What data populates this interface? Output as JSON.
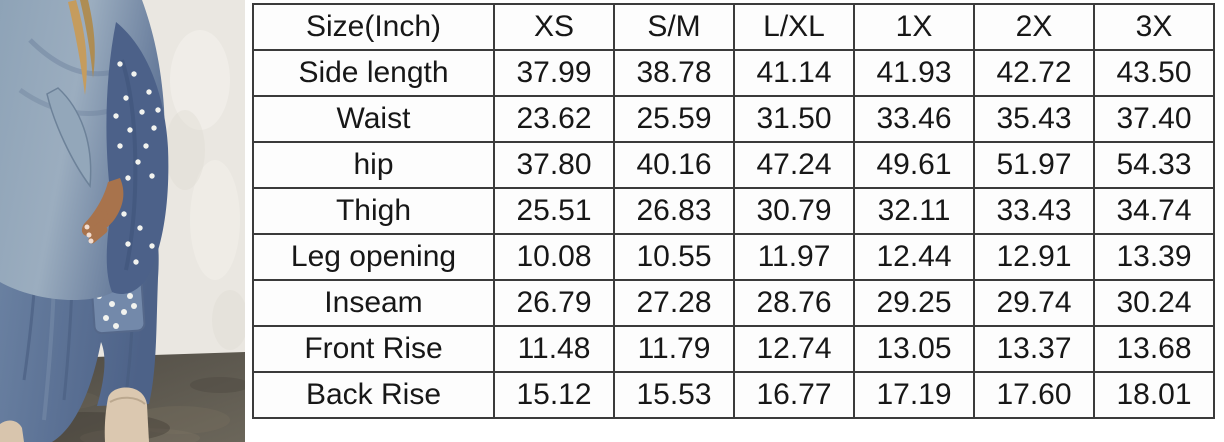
{
  "photo": {
    "colors": {
      "wall": "#eae7e1",
      "floor": "#57524a",
      "denim_light": "#93a7ba",
      "denim_dark": "#4c6189",
      "pants_denim": "#5d7494",
      "waistband": "#26395a",
      "pearl": "#f2f3ef",
      "skin": "#a8734c",
      "boot": "#dbc8b0",
      "hair": "#c59c5e"
    }
  },
  "table": {
    "header": [
      "Size(Inch)",
      "XS",
      "S/M",
      "L/XL",
      "1X",
      "2X",
      "3X"
    ],
    "rows": [
      {
        "label": "Side length",
        "values": [
          "37.99",
          "38.78",
          "41.14",
          "41.93",
          "42.72",
          "43.50"
        ]
      },
      {
        "label": "Waist",
        "values": [
          "23.62",
          "25.59",
          "31.50",
          "33.46",
          "35.43",
          "37.40"
        ]
      },
      {
        "label": "hip",
        "values": [
          "37.80",
          "40.16",
          "47.24",
          "49.61",
          "51.97",
          "54.33"
        ]
      },
      {
        "label": "Thigh",
        "values": [
          "25.51",
          "26.83",
          "30.79",
          "32.11",
          "33.43",
          "34.74"
        ]
      },
      {
        "label": "Leg opening",
        "values": [
          "10.08",
          "10.55",
          "11.97",
          "12.44",
          "12.91",
          "13.39"
        ]
      },
      {
        "label": "Inseam",
        "values": [
          "26.79",
          "27.28",
          "28.76",
          "29.25",
          "29.74",
          "30.24"
        ]
      },
      {
        "label": "Front Rise",
        "values": [
          "11.48",
          "11.79",
          "12.74",
          "13.05",
          "13.37",
          "13.68"
        ]
      },
      {
        "label": "Back Rise",
        "values": [
          "15.12",
          "15.53",
          "16.77",
          "17.19",
          "17.60",
          "18.01"
        ]
      }
    ]
  },
  "chart_data": {
    "type": "table",
    "title": "Size(Inch)",
    "units": "inches",
    "columns": [
      "Size(Inch)",
      "XS",
      "S/M",
      "L/XL",
      "1X",
      "2X",
      "3X"
    ],
    "rows": [
      [
        "Side length",
        37.99,
        38.78,
        41.14,
        41.93,
        42.72,
        43.5
      ],
      [
        "Waist",
        23.62,
        25.59,
        31.5,
        33.46,
        35.43,
        37.4
      ],
      [
        "hip",
        37.8,
        40.16,
        47.24,
        49.61,
        51.97,
        54.33
      ],
      [
        "Thigh",
        25.51,
        26.83,
        30.79,
        32.11,
        33.43,
        34.74
      ],
      [
        "Leg opening",
        10.08,
        10.55,
        11.97,
        12.44,
        12.91,
        13.39
      ],
      [
        "Inseam",
        26.79,
        27.28,
        28.76,
        29.25,
        29.74,
        30.24
      ],
      [
        "Front Rise",
        11.48,
        11.79,
        12.74,
        13.05,
        13.37,
        13.68
      ],
      [
        "Back Rise",
        15.12,
        15.53,
        16.77,
        17.19,
        17.6,
        18.01
      ]
    ]
  }
}
